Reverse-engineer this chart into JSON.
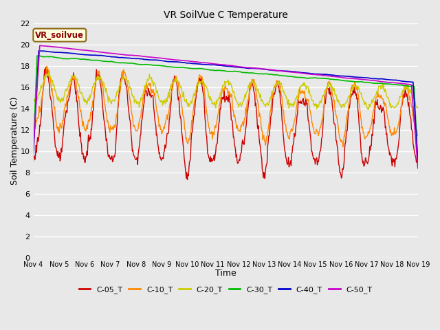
{
  "title": "VR SoilVue C Temperature",
  "xlabel": "Time",
  "ylabel": "Soil Temperature (C)",
  "ylim": [
    0,
    22
  ],
  "yticks": [
    0,
    2,
    4,
    6,
    8,
    10,
    12,
    14,
    16,
    18,
    20,
    22
  ],
  "x_labels": [
    "Nov 4",
    "Nov 5",
    "Nov 6",
    "Nov 7",
    "Nov 8",
    "Nov 9",
    "Nov 10",
    "Nov 11",
    "Nov 12",
    "Nov 13",
    "Nov 14",
    "Nov 15",
    "Nov 16",
    "Nov 17",
    "Nov 18",
    "Nov 19"
  ],
  "series_names": [
    "C-05_T",
    "C-10_T",
    "C-20_T",
    "C-30_T",
    "C-40_T",
    "C-50_T"
  ],
  "series_colors": [
    "#cc0000",
    "#ff8800",
    "#cccc00",
    "#00bb00",
    "#0000cc",
    "#cc00cc"
  ],
  "legend_label": "VR_soilvue",
  "background_color": "#e8e8e8",
  "grid_color": "#ffffff",
  "num_points": 720,
  "figsize": [
    6.4,
    4.8
  ],
  "dpi": 100
}
